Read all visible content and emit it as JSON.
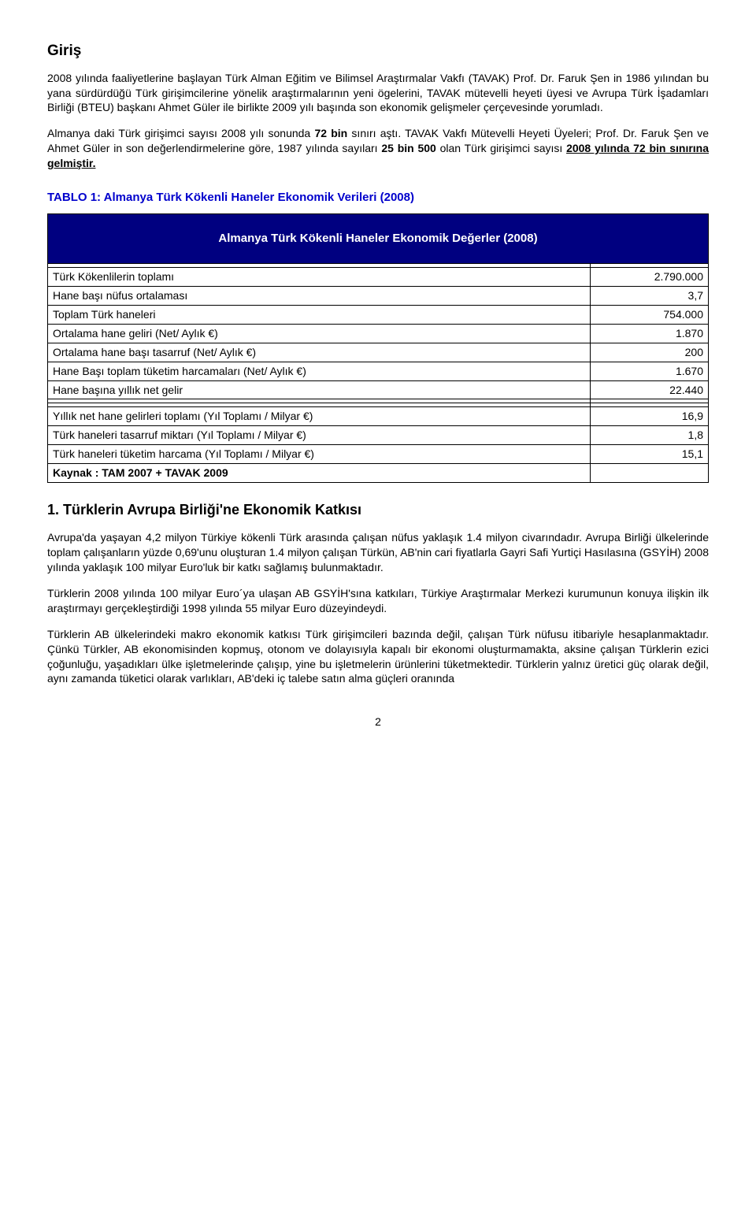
{
  "heading": "Giriş",
  "para1": "2008 yılında faaliyetlerine başlayan Türk Alman Eğitim ve Bilimsel Araştırmalar Vakfı (TAVAK) Prof. Dr. Faruk Şen in 1986 yılından bu yana sürdürdüğü Türk girişimcilerine yönelik araştırmalarının yeni ögelerini, TAVAK mütevelli heyeti üyesi ve Avrupa Türk İşadamları Birliği (BTEU) başkanı Ahmet Güler ile birlikte 2009 yılı başında son ekonomik gelişmeler çerçevesinde yorumladı.",
  "para2_pre": "Almanya daki Türk girişimci sayısı 2008 yılı sonunda ",
  "para2_bold1": "72 bin",
  "para2_mid1": " sınırı aştı. TAVAK Vakfı Mütevelli Heyeti Üyeleri; Prof. Dr. Faruk Şen ve Ahmet Güler in son değerlendirmelerine göre, 1987 yılında sayıları ",
  "para2_bold2": "25 bin 500",
  "para2_mid2": " olan Türk girişimci sayısı ",
  "para2_bold_underline": "2008 yılında 72 bin sınırına gelmiştir.",
  "table_caption": "TABLO 1:  Almanya Türk Kökenli Haneler Ekonomik Verileri (2008)",
  "table_header": "Almanya Türk Kökenli Haneler Ekonomik  Değerler (2008)",
  "rows1": [
    {
      "label": "Türk Kökenlilerin toplamı",
      "value": "2.790.000"
    },
    {
      "label": "Hane başı nüfus ortalaması",
      "value": "3,7"
    },
    {
      "label": "Toplam Türk haneleri",
      "value": "754.000"
    },
    {
      "label": "Ortalama hane geliri (Net/ Aylık  €)",
      "value": "1.870"
    },
    {
      "label": "Ortalama hane başı tasarruf (Net/ Aylık  €)",
      "value": "200"
    },
    {
      "label": "Hane Başı toplam tüketim harcamaları (Net/ Aylık  €)",
      "value": "1.670"
    },
    {
      "label": "Hane başına yıllık net gelir",
      "value": "22.440"
    }
  ],
  "rows2": [
    {
      "label": "Yıllık net hane gelirleri toplamı (Yıl Toplamı /  Milyar €)",
      "value": "16,9"
    },
    {
      "label": "Türk haneleri tasarruf miktarı (Yıl Toplamı / Milyar €)",
      "value": "1,8"
    },
    {
      "label": "Türk haneleri tüketim harcama  (Yıl Toplamı / Milyar €)",
      "value": "15,1"
    }
  ],
  "source_label": "Kaynak : TAM 2007 + TAVAK 2009",
  "section_heading": "1. Türklerin Avrupa Birliği'ne Ekonomik Katkısı",
  "para3": "Avrupa'da yaşayan 4,2 milyon Türkiye kökenli Türk arasında çalışan nüfus yaklaşık 1.4 milyon civarındadır. Avrupa Birliği ülkelerinde toplam çalışanların yüzde 0,69'unu oluşturan 1.4 milyon çalışan Türkün, AB'nin cari fiyatlarla Gayri Safi Yurtiçi Hasılasına (GSYİH) 2008 yılında yaklaşık 100 milyar Euro'luk bir katkı sağlamış bulunmaktadır.",
  "para4": "Türklerin 2008 yılında 100 milyar Euro´ya ulaşan AB GSYİH'sına katkıları, Türkiye Araştırmalar Merkezi kurumunun konuya ilişkin ilk araştırmayı gerçekleştirdiği 1998 yılında 55 milyar Euro düzeyindeydi.",
  "para5": "Türklerin AB ülkelerindeki makro  ekonomik katkısı Türk girişimcileri bazında değil, çalışan Türk nüfusu itibariyle hesaplanmaktadır. Çünkü Türkler, AB ekonomisinden kopmuş, otonom ve dolayısıyla kapalı bir ekonomi oluşturmamakta, aksine çalışan Türklerin ezici çoğunluğu, yaşadıkları ülke işletmelerinde çalışıp, yine bu işletmelerin ürünlerini tüketmektedir. Türklerin yalnız üretici güç olarak değil, aynı zamanda tüketici olarak varlıkları, AB'deki iç talebe satın alma güçleri oranında",
  "page_number": "2"
}
